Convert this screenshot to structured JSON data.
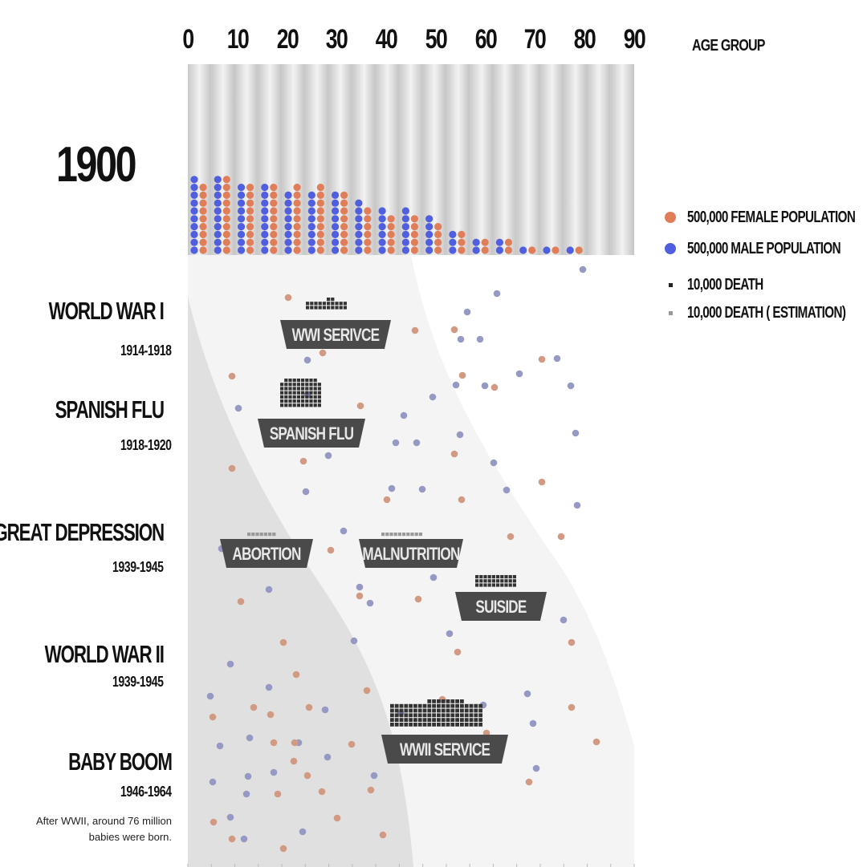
{
  "chart_data": {
    "type": "scatter",
    "x_axis": {
      "ticks": [
        0,
        10,
        20,
        30,
        40,
        50,
        60,
        70,
        80,
        90
      ],
      "label": "AGE GROUP"
    },
    "year": "1900",
    "population_columns": [
      {
        "female": 9,
        "male": 10
      },
      {
        "female": 10,
        "male": 10
      },
      {
        "female": 9,
        "male": 9
      },
      {
        "female": 9,
        "male": 9
      },
      {
        "female": 9,
        "male": 8
      },
      {
        "female": 9,
        "male": 8
      },
      {
        "female": 8,
        "male": 8
      },
      {
        "female": 6,
        "male": 7
      },
      {
        "female": 5,
        "male": 6
      },
      {
        "female": 5,
        "male": 6
      },
      {
        "female": 4,
        "male": 5
      },
      {
        "female": 3,
        "male": 3
      },
      {
        "female": 2,
        "male": 2
      },
      {
        "female": 2,
        "male": 2
      },
      {
        "female": 1,
        "male": 1
      },
      {
        "female": 1,
        "male": 1
      },
      {
        "female": 1,
        "male": 1
      }
    ],
    "causes": [
      {
        "label": "WWI SERIVCE",
        "cols": 10,
        "rows": 3,
        "estimated": false
      },
      {
        "label": "SPANISH FLU",
        "cols": 10,
        "rows": 7,
        "estimated": false
      },
      {
        "label": "ABORTION",
        "cols": 7,
        "rows": 1,
        "estimated": true
      },
      {
        "label": "MALNUTRITION",
        "cols": 10,
        "rows": 1,
        "estimated": true
      },
      {
        "label": "SUISIDE",
        "cols": 10,
        "rows": 3,
        "estimated": false
      },
      {
        "label": "WWII SERVICE",
        "cols": 20,
        "rows": 6,
        "estimated": false
      }
    ]
  },
  "events": [
    {
      "name": "WORLD WAR I",
      "years": "1914-1918"
    },
    {
      "name": "SPANISH FLU",
      "years": "1918-1920"
    },
    {
      "name": "GREAT DEPRESSION",
      "years": "1939-1945"
    },
    {
      "name": "WORLD WAR II",
      "years": "1939-1945"
    },
    {
      "name": "BABY BOOM",
      "years": "1946-1964"
    }
  ],
  "baby_boom_note": [
    "After WWII, around 76 million",
    "babies were born."
  ],
  "legend": [
    {
      "label": "500,000 FEMALE POPULATION",
      "color": "#e07e5a"
    },
    {
      "label": "500,000 MALE POPULATION",
      "color": "#4f5fe0"
    },
    {
      "label": "10,000 DEATH",
      "color": "#222222"
    },
    {
      "label": "10,000 DEATH ( ESTIMATION)",
      "color": "#999999"
    }
  ],
  "colors": {
    "female": "#e07e5a",
    "male": "#4f5fe0",
    "female_faded": "#d29a82",
    "male_faded": "#9599c4",
    "death": "#333333",
    "death_est": "#999999",
    "box": "#4a4a4a"
  }
}
